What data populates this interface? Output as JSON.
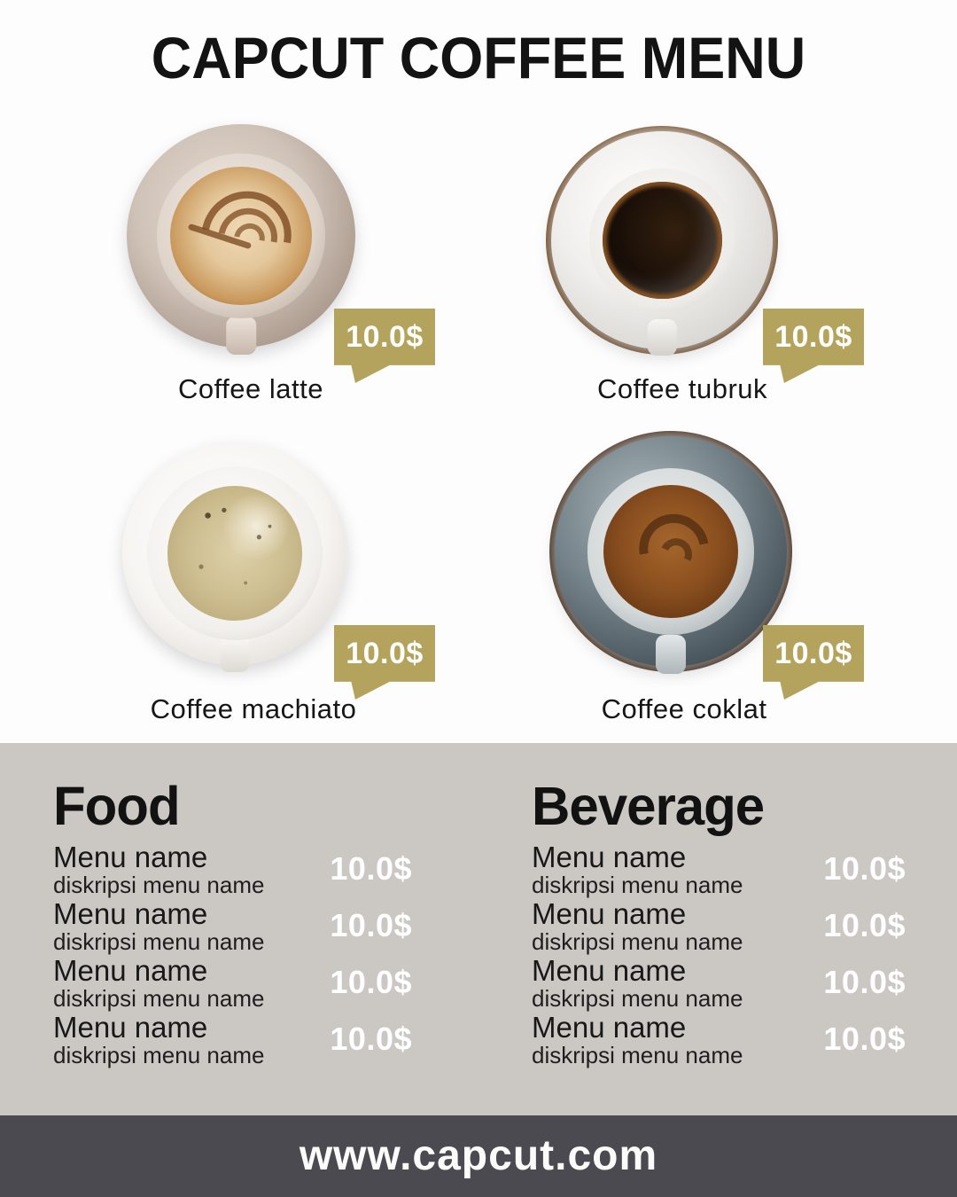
{
  "title": "CAPCUT COFFEE MENU",
  "products": [
    {
      "name": "Coffee latte",
      "price": "10.0$"
    },
    {
      "name": "Coffee tubruk",
      "price": "10.0$"
    },
    {
      "name": "Coffee machiato",
      "price": "10.0$"
    },
    {
      "name": "Coffee coklat",
      "price": "10.0$"
    }
  ],
  "sections": [
    {
      "heading": "Food",
      "items": [
        {
          "name": "Menu name",
          "desc": "diskripsi menu name",
          "price": "10.0$"
        },
        {
          "name": "Menu name",
          "desc": "diskripsi menu name",
          "price": "10.0$"
        },
        {
          "name": "Menu name",
          "desc": "diskripsi menu name",
          "price": "10.0$"
        },
        {
          "name": "Menu name",
          "desc": "diskripsi menu name",
          "price": "10.0$"
        }
      ]
    },
    {
      "heading": "Beverage",
      "items": [
        {
          "name": "Menu name",
          "desc": "diskripsi menu name",
          "price": "10.0$"
        },
        {
          "name": "Menu name",
          "desc": "diskripsi menu name",
          "price": "10.0$"
        },
        {
          "name": "Menu name",
          "desc": "diskripsi menu name",
          "price": "10.0$"
        },
        {
          "name": "Menu name",
          "desc": "diskripsi menu name",
          "price": "10.0$"
        }
      ]
    }
  ],
  "footer": {
    "url": "www.capcut.com"
  },
  "colors": {
    "badge_gold": "#b4a35c",
    "panel_gray": "#cbc8c4",
    "footer_dark": "#4b4a51",
    "background": "#fdfdfe",
    "text_black": "#131313",
    "price_text": "#ffffff"
  }
}
